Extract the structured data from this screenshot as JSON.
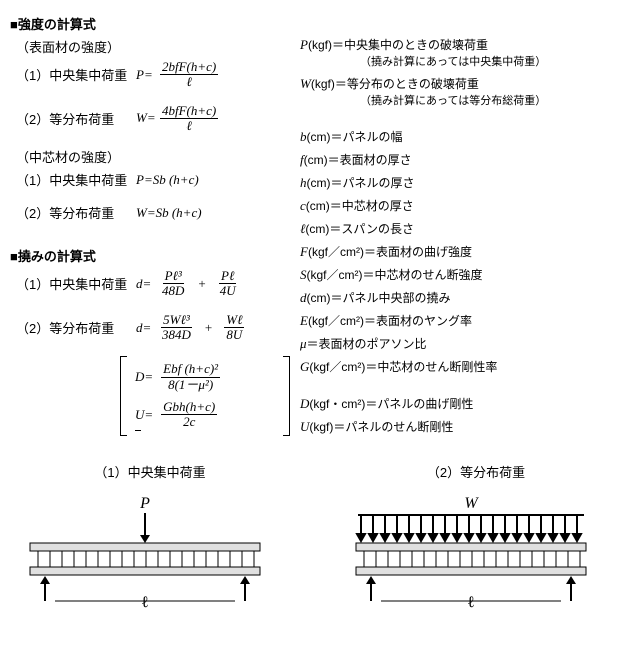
{
  "strength": {
    "title": "■強度の計算式",
    "surface": {
      "title": "（表面材の強度）",
      "r1": {
        "label": "（1）中央集中荷重",
        "sym": "P=",
        "num": "2bfF(h+c)",
        "den": "ℓ"
      },
      "r2": {
        "label": "（2）等分布荷重",
        "sym": "W=",
        "num": "4bfF(h+c)",
        "den": "ℓ"
      }
    },
    "core": {
      "title": "（中芯材の強度）",
      "r1": {
        "label": "（1）中央集中荷重",
        "expr": "P=Sb (h+c)"
      },
      "r2": {
        "label": "（2）等分布荷重",
        "expr": "W=Sb (h+c)"
      }
    }
  },
  "deflection": {
    "title": "■撓みの計算式",
    "r1": {
      "label": "（1）中央集中荷重",
      "sym": "d=",
      "t1n": "Pℓ³",
      "t1d": "48D",
      "t2n": "Pℓ",
      "t2d": "4U"
    },
    "r2": {
      "label": "（2）等分布荷重",
      "sym": "d=",
      "t1n": "5Wℓ³",
      "t1d": "384D",
      "t2n": "Wℓ",
      "t2d": "8U"
    },
    "aux": {
      "D": {
        "sym": "D=",
        "num": "Ebf (h+c)²",
        "den": "8(1－μ²)"
      },
      "U": {
        "sym": "U=",
        "num": "Gbh(h+c)",
        "den": "2c"
      }
    }
  },
  "defs": {
    "P": {
      "s": "P",
      "u": "(kgf)＝中央集中のときの破壊荷重",
      "note": "（撓み計算にあっては中央集中荷重）"
    },
    "W": {
      "s": "W",
      "u": "(kgf)＝等分布のときの破壊荷重",
      "note": "（撓み計算にあっては等分布総荷重）"
    },
    "b": {
      "s": "b",
      "u": "(cm)＝パネルの幅"
    },
    "f": {
      "s": "f",
      "u": "(cm)＝表面材の厚さ"
    },
    "h": {
      "s": "h",
      "u": "(cm)＝パネルの厚さ"
    },
    "c": {
      "s": "c",
      "u": "(cm)＝中芯材の厚さ"
    },
    "l": {
      "s": "ℓ",
      "u": "(cm)＝スパンの長さ"
    },
    "F": {
      "s": "F",
      "u": "(kgf／cm²)＝表面材の曲げ強度"
    },
    "S": {
      "s": "S",
      "u": "(kgf／cm²)＝中芯材のせん断強度"
    },
    "d": {
      "s": "d",
      "u": "(cm)＝パネル中央部の撓み"
    },
    "E": {
      "s": "E",
      "u": "(kgf／cm²)＝表面材のヤング率"
    },
    "mu": {
      "s": "μ",
      "u": "＝表面材のポアソン比"
    },
    "G": {
      "s": "G",
      "u": "(kgf／cm²)＝中芯材のせん断剛性率"
    },
    "D": {
      "s": "D",
      "u": "(kgf・cm²)＝パネルの曲げ剛性"
    },
    "U": {
      "s": "U",
      "u": "(kgf)＝パネルのせん断剛性"
    }
  },
  "beams": {
    "b1": {
      "title": "（1）中央集中荷重",
      "load": "P",
      "span": "ℓ"
    },
    "b2": {
      "title": "（2）等分布荷重",
      "load": "W",
      "span": "ℓ"
    }
  },
  "colors": {
    "fg": "#000000",
    "bg": "#ffffff",
    "beam_fill": "#e0e0e0"
  }
}
